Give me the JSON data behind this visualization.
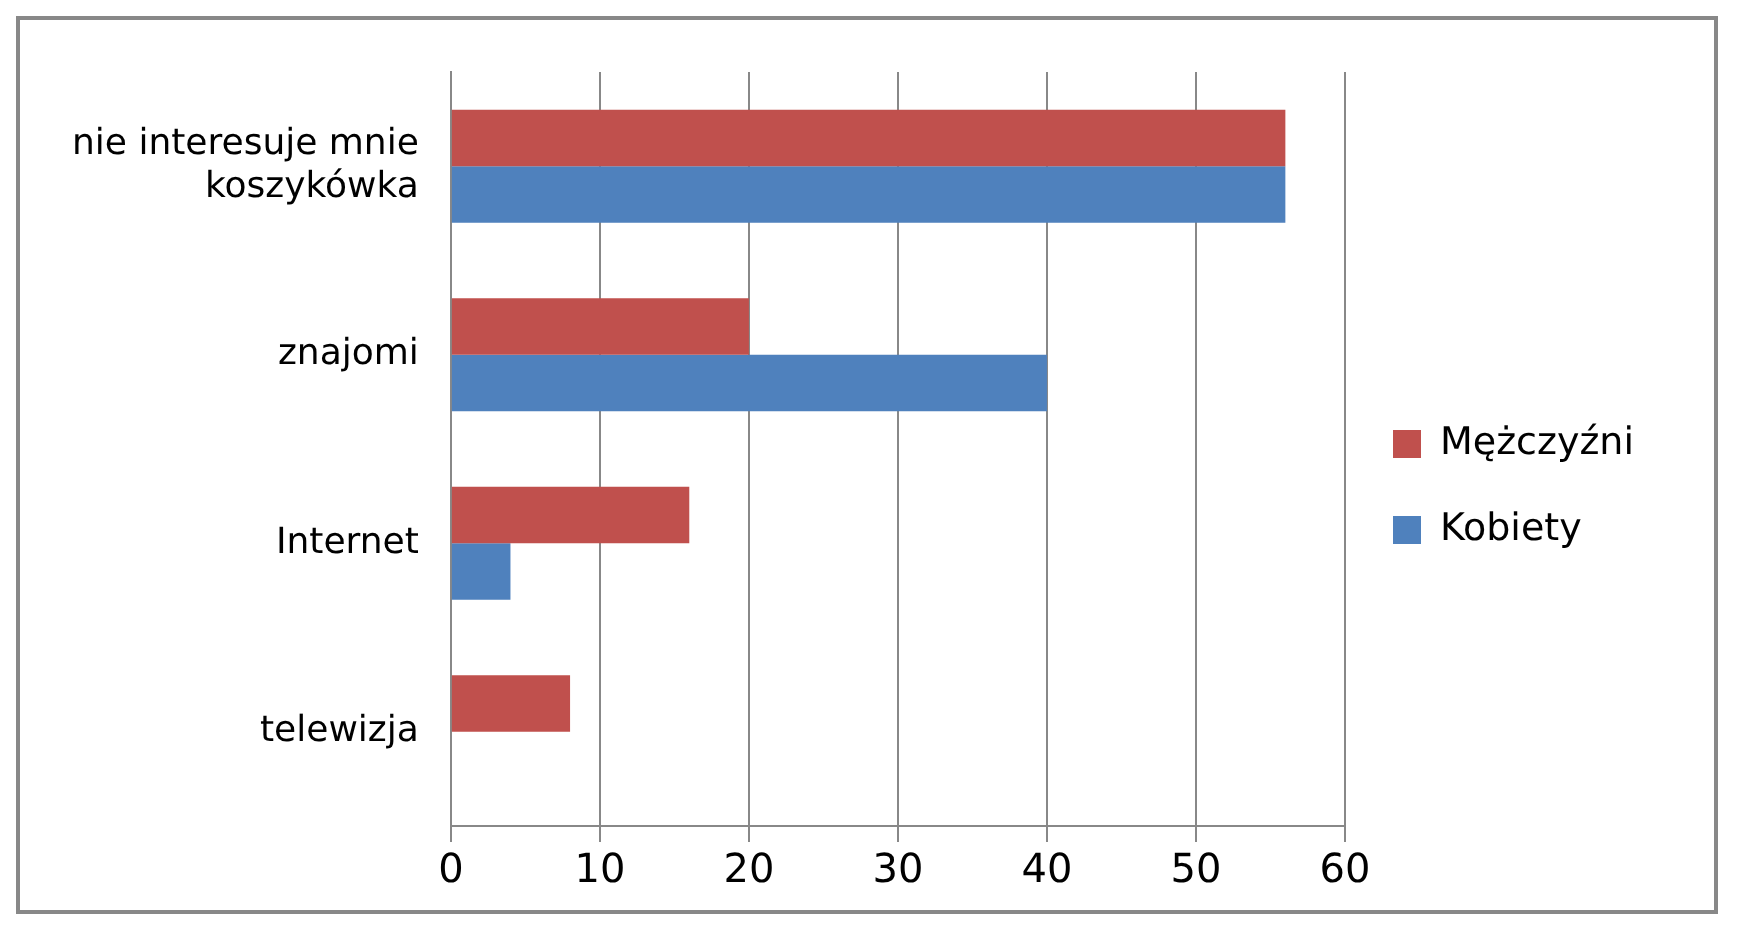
{
  "chart_data": {
    "type": "bar",
    "orientation": "horizontal",
    "categories": [
      "nie interesuje mnie koszykówka",
      "znajomi",
      "Internet",
      "telewizja"
    ],
    "series": [
      {
        "name": "Mężczyźni",
        "color": "#c0504d",
        "values": [
          56,
          20,
          16,
          8
        ]
      },
      {
        "name": "Kobiety",
        "color": "#4f81bd",
        "values": [
          56,
          40,
          4,
          0
        ]
      }
    ],
    "xlim": [
      0,
      60
    ],
    "xticks": [
      0,
      10,
      20,
      30,
      40,
      50,
      60
    ],
    "grid": "x",
    "legend": "right"
  }
}
